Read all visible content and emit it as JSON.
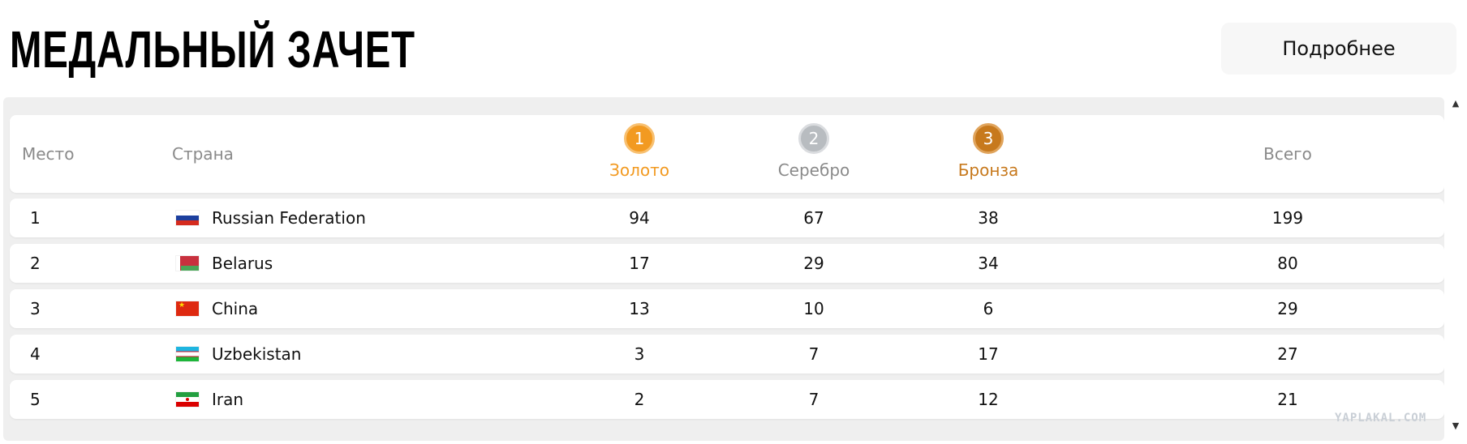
{
  "header": {
    "title": "МЕДАЛЬНЫЙ ЗАЧЕТ",
    "more_button": "Подробнее"
  },
  "table": {
    "columns": {
      "place": "Место",
      "country": "Страна",
      "gold": {
        "number": "1",
        "label": "Золото",
        "color": "#f29a21"
      },
      "silver": {
        "number": "2",
        "label": "Серебро",
        "color": "#b8bcc0"
      },
      "bronze": {
        "number": "3",
        "label": "Бронза",
        "color": "#c7791d"
      },
      "total": "Всего"
    },
    "rows": [
      {
        "place": "1",
        "country": "Russian Federation",
        "flag": "russia-flag-icon",
        "gold": "94",
        "silver": "67",
        "bronze": "38",
        "total": "199"
      },
      {
        "place": "2",
        "country": "Belarus",
        "flag": "belarus-flag-icon",
        "gold": "17",
        "silver": "29",
        "bronze": "34",
        "total": "80"
      },
      {
        "place": "3",
        "country": "China",
        "flag": "china-flag-icon",
        "gold": "13",
        "silver": "10",
        "bronze": "6",
        "total": "29"
      },
      {
        "place": "4",
        "country": "Uzbekistan",
        "flag": "uzbekistan-flag-icon",
        "gold": "3",
        "silver": "7",
        "bronze": "17",
        "total": "27"
      },
      {
        "place": "5",
        "country": "Iran",
        "flag": "iran-flag-icon",
        "gold": "2",
        "silver": "7",
        "bronze": "12",
        "total": "21"
      }
    ]
  },
  "watermark": "YAPLAKAL.COM"
}
